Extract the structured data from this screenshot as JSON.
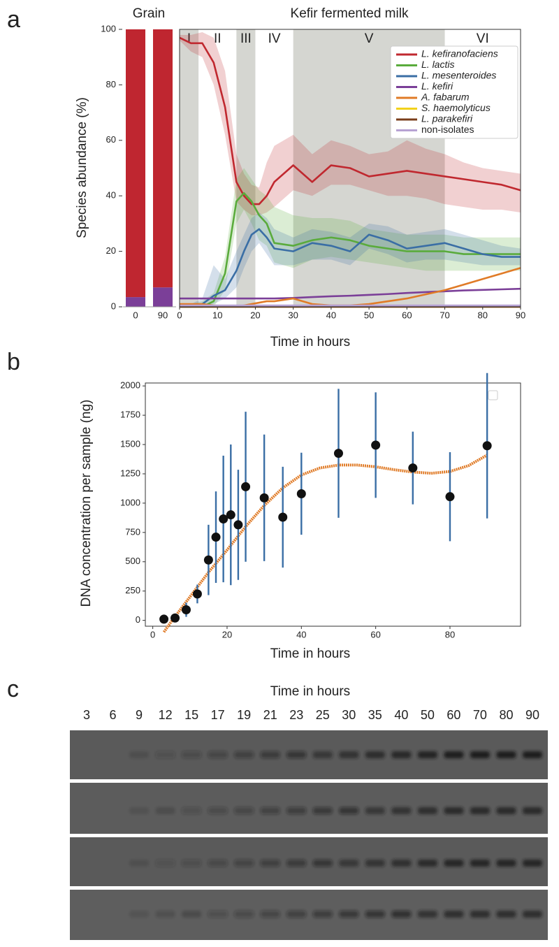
{
  "panel_labels": [
    "a",
    "b",
    "c"
  ],
  "chart_data": [
    {
      "type": "stacked_bar",
      "title": "Grain",
      "y_label": "Species abundance (%)",
      "categories": [
        "0",
        "90"
      ],
      "ylim": [
        0,
        100
      ],
      "yticks": [
        0,
        20,
        40,
        60,
        80,
        100
      ],
      "series": [
        {
          "color": "#7b3f98",
          "values": [
            3.5,
            7
          ]
        },
        {
          "color": "#bf2630",
          "values": [
            96.5,
            93
          ]
        }
      ]
    },
    {
      "type": "line",
      "title": "Kefir fermented milk",
      "x_label": "Time in hours",
      "xlim": [
        0,
        90
      ],
      "ylim": [
        0,
        100
      ],
      "xticks": [
        0,
        10,
        20,
        30,
        40,
        50,
        60,
        70,
        80,
        90
      ],
      "legend": "upper right",
      "phases": [
        {
          "label": "I",
          "start": 0,
          "end": 5,
          "shaded": true
        },
        {
          "label": "II",
          "start": 5,
          "end": 15,
          "shaded": false
        },
        {
          "label": "III",
          "start": 15,
          "end": 20,
          "shaded": true
        },
        {
          "label": "IV",
          "start": 20,
          "end": 30,
          "shaded": false
        },
        {
          "label": "V",
          "start": 30,
          "end": 70,
          "shaded": true
        },
        {
          "label": "VI",
          "start": 70,
          "end": 90,
          "shaded": false
        }
      ],
      "x": [
        0,
        3,
        6,
        9,
        12,
        15,
        17,
        19,
        21,
        23,
        25,
        30,
        35,
        40,
        45,
        50,
        55,
        60,
        65,
        70,
        75,
        80,
        85,
        90
      ],
      "series": [
        {
          "name": "L. kefiranofaciens",
          "color": "#c0282f",
          "italic": true,
          "values": [
            97,
            95,
            95,
            88,
            72,
            45,
            40,
            37,
            37,
            40,
            45,
            51,
            45,
            51,
            50,
            47,
            48,
            49,
            48,
            47,
            46,
            45,
            44,
            42
          ],
          "lower": [
            96,
            92,
            90,
            80,
            62,
            38,
            35,
            33,
            33,
            34,
            36,
            42,
            40,
            44,
            44,
            42,
            40,
            40,
            39,
            37,
            36,
            35,
            35,
            34
          ],
          "upper": [
            98,
            98,
            99,
            97,
            85,
            55,
            48,
            44,
            43,
            52,
            58,
            62,
            55,
            60,
            58,
            55,
            56,
            60,
            57,
            55,
            52,
            50,
            49,
            48
          ]
        },
        {
          "name": "L. lactis",
          "color": "#5aab3c",
          "italic": true,
          "values": [
            0,
            0,
            0,
            2,
            12,
            38,
            41,
            38,
            33,
            30,
            23,
            22,
            24,
            25,
            24,
            22,
            21,
            20,
            20,
            20,
            19,
            19,
            19,
            19
          ],
          "lower": [
            0,
            0,
            0,
            0,
            6,
            30,
            35,
            30,
            24,
            22,
            16,
            14,
            17,
            18,
            17,
            16,
            15,
            14,
            13,
            13,
            13,
            13,
            13,
            13
          ],
          "upper": [
            1,
            1,
            2,
            5,
            18,
            46,
            50,
            46,
            42,
            40,
            36,
            33,
            32,
            32,
            31,
            28,
            27,
            26,
            26,
            26,
            25,
            25,
            25,
            25
          ]
        },
        {
          "name": "L. mesenteroides",
          "color": "#3a6ea5",
          "italic": true,
          "values": [
            0,
            0,
            1,
            4,
            6,
            13,
            20,
            26,
            28,
            25,
            21,
            20,
            23,
            22,
            20,
            26,
            24,
            21,
            22,
            23,
            21,
            19,
            18,
            18
          ],
          "lower": [
            0,
            0,
            0,
            1,
            3,
            7,
            14,
            20,
            23,
            19,
            15,
            15,
            17,
            17,
            15,
            21,
            19,
            16,
            17,
            17,
            16,
            15,
            15,
            15
          ],
          "upper": [
            1,
            1,
            3,
            15,
            10,
            20,
            26,
            32,
            34,
            32,
            28,
            25,
            28,
            27,
            25,
            30,
            29,
            26,
            27,
            28,
            26,
            24,
            22,
            21
          ]
        },
        {
          "name": "L. kefiri",
          "color": "#7b3f98",
          "italic": true,
          "values": [
            3,
            3,
            3,
            3,
            3,
            3,
            3,
            3,
            3,
            3,
            3,
            3.2,
            3.5,
            3.8,
            4,
            4.3,
            4.6,
            5,
            5.3,
            5.6,
            5.9,
            6.1,
            6.3,
            6.5
          ]
        },
        {
          "name": "A. fabarum",
          "color": "#e07b27",
          "italic": true,
          "values": [
            1,
            1,
            1,
            0.5,
            0.3,
            0.2,
            0.5,
            1,
            1.5,
            2,
            2,
            3,
            1,
            0.5,
            0.5,
            1,
            2,
            3,
            4.5,
            6,
            8,
            10,
            12,
            14
          ]
        },
        {
          "name": "S. haemolyticus",
          "color": "#f2d21b",
          "italic": true,
          "values": [
            0,
            0,
            0,
            0,
            0,
            0,
            0,
            0,
            0,
            0,
            0,
            0,
            0,
            0,
            0,
            0,
            0,
            0,
            0,
            0,
            0,
            0,
            0,
            0
          ]
        },
        {
          "name": "L. parakefiri",
          "color": "#7a3d1a",
          "italic": true,
          "values": [
            0,
            0,
            0,
            0,
            0,
            0,
            0,
            0,
            0,
            0,
            0,
            0,
            0,
            0,
            0,
            0,
            0,
            0,
            0,
            0,
            0,
            0,
            0,
            0
          ]
        },
        {
          "name": "non-isolates",
          "color": "#b7a2d3",
          "italic": false,
          "values": [
            0.5,
            0.5,
            0.5,
            0.5,
            0.5,
            0.5,
            0.5,
            0.5,
            0.5,
            0.5,
            0.5,
            0.5,
            0.5,
            0.5,
            0.5,
            0.5,
            0.5,
            0.5,
            0.5,
            0.5,
            0.5,
            0.5,
            0.5,
            0.5
          ]
        }
      ]
    },
    {
      "type": "scatter",
      "x_label": "Time in hours",
      "y_label": "DNA concentration per sample (ng)",
      "xlim": [
        -2,
        99
      ],
      "ylim": [
        -50,
        2025
      ],
      "xticks": [
        0,
        20,
        40,
        60,
        80
      ],
      "yticks": [
        0,
        250,
        500,
        750,
        1000,
        1250,
        1500,
        1750,
        2000
      ],
      "series": [
        {
          "color": "#111111",
          "error_color": "#3a6ea5",
          "x": [
            3,
            6,
            9,
            12,
            15,
            17,
            19,
            21,
            23,
            25,
            30,
            35,
            40,
            50,
            60,
            70,
            80,
            90
          ],
          "values": [
            10,
            20,
            90,
            225,
            515,
            710,
            865,
            900,
            815,
            1140,
            1045,
            880,
            1080,
            1425,
            1495,
            1300,
            1055,
            1490
          ],
          "errors": [
            10,
            10,
            60,
            80,
            300,
            390,
            540,
            600,
            470,
            640,
            540,
            430,
            350,
            550,
            450,
            310,
            380,
            620
          ]
        }
      ],
      "fit": {
        "color": "#e07b27",
        "x": [
          3,
          5,
          10,
          15,
          20,
          25,
          30,
          35,
          40,
          45,
          50,
          55,
          60,
          65,
          70,
          75,
          80,
          85,
          90
        ],
        "values": [
          -100,
          -10,
          200,
          410,
          600,
          800,
          980,
          1130,
          1240,
          1300,
          1325,
          1325,
          1310,
          1285,
          1265,
          1255,
          1270,
          1320,
          1410
        ]
      }
    }
  ],
  "gel": {
    "title": "Time in hours",
    "lanes": [
      3,
      6,
      9,
      12,
      15,
      17,
      19,
      21,
      23,
      25,
      30,
      35,
      40,
      50,
      60,
      70,
      80,
      90
    ]
  }
}
